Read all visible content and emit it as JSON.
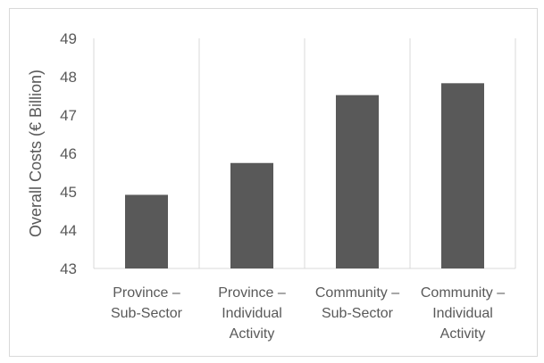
{
  "chart_data": {
    "type": "bar",
    "categories": [
      [
        "Province –",
        "Sub-Sector"
      ],
      [
        "Province –",
        "Individual",
        "Activity"
      ],
      [
        "Community –",
        "Sub-Sector"
      ],
      [
        "Community –",
        "Individual",
        "Activity"
      ]
    ],
    "values": [
      44.92,
      45.75,
      47.52,
      47.83
    ],
    "title": "",
    "xlabel": "",
    "ylabel": "Overall Costs (€ Billion)",
    "ylim": [
      43,
      49
    ],
    "yticks": [
      43,
      44,
      45,
      46,
      47,
      48,
      49
    ],
    "grid": "vertical category separators",
    "legend": "none",
    "bar_color": "#595959"
  }
}
